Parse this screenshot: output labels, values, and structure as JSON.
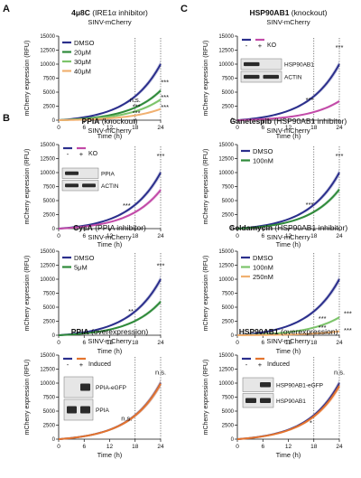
{
  "colors": {
    "blue": "#2b2f8c",
    "green": "#2f8a3a",
    "lightgreen": "#7cc46a",
    "orange": "#f0b070",
    "magenta": "#c24aa8",
    "pink": "#e68aa8",
    "darkorange": "#e4742e",
    "dotted": "#444444"
  },
  "common": {
    "xlabel": "Time (h)",
    "ylabel": "mCherry expression (RFU)",
    "xticks": [
      "0",
      "6",
      "12",
      "18",
      "24"
    ],
    "yticks": [
      "0",
      "2500",
      "5000",
      "7500",
      "10000",
      "12500",
      "15000"
    ]
  },
  "chart_data": [
    {
      "id": "a",
      "panel_letter": "A",
      "type": "line",
      "title": "4μ8C (IRE1α inhibitor)",
      "subtitle": "SINV-mCherry",
      "xlabel": "Time (h)",
      "ylabel": "mCherry expression (RFU)",
      "xlim": [
        0,
        24
      ],
      "ylim": [
        0,
        15000
      ],
      "grid": false,
      "legend": "top-left",
      "legend_entries": [
        "DMSO",
        "20μM",
        "30μM",
        "40μM"
      ],
      "series": [
        {
          "name": "DMSO",
          "color": "blue",
          "end": 10000,
          "k": 3.2
        },
        {
          "name": "20μM",
          "color": "green",
          "end": 5300,
          "k": 3.2
        },
        {
          "name": "30μM",
          "color": "lightgreen",
          "end": 3700,
          "k": 3.2
        },
        {
          "name": "40μM",
          "color": "orange",
          "end": 2000,
          "k": 3.2
        }
      ],
      "annotations": [
        {
          "text": "n.s.",
          "x": 18,
          "y": 3200
        },
        {
          "text": "***",
          "x": 18.3,
          "y": 2000
        },
        {
          "text": "***",
          "x": 18.3,
          "y": 900
        },
        {
          "text": "***",
          "x": 25,
          "y": 6400
        },
        {
          "text": "***",
          "x": 25,
          "y": 3700
        },
        {
          "text": "***",
          "x": 25,
          "y": 1900
        }
      ],
      "dotted_x": [
        18,
        24
      ]
    },
    {
      "id": "b1",
      "panel_letter": "B",
      "type": "line",
      "title": "PPIA (knockout)",
      "subtitle": "SINV-mCherry",
      "xlabel": "Time (h)",
      "ylabel": "mCherry expression (RFU)",
      "xlim": [
        0,
        24
      ],
      "ylim": [
        0,
        15000
      ],
      "grid": false,
      "legend": "top-left",
      "legend_entries": [
        "-",
        "+",
        "KO"
      ],
      "series": [
        {
          "name": "-",
          "color": "blue",
          "end": 10000,
          "k": 3.2
        },
        {
          "name": "+",
          "color": "magenta",
          "end": 6900,
          "k": 3.2
        }
      ],
      "blot_labels": [
        "PPIA",
        "ACTIN"
      ],
      "annotations": [
        {
          "text": "***",
          "x": 16,
          "y": 3700
        },
        {
          "text": "***",
          "x": 24,
          "y": 12600
        }
      ],
      "dotted_x": [
        18,
        24
      ]
    },
    {
      "id": "b2",
      "type": "line",
      "title": "CysA (PPIA inhibitor)",
      "subtitle": "SINV-mCherry",
      "xlabel": "Time (h)",
      "ylabel": "mCherry expression (RFU)",
      "xlim": [
        0,
        24
      ],
      "ylim": [
        0,
        15000
      ],
      "grid": false,
      "legend": "top-left",
      "legend_entries": [
        "DMSO",
        "5μM"
      ],
      "series": [
        {
          "name": "DMSO",
          "color": "blue",
          "end": 10000,
          "k": 3.2
        },
        {
          "name": "5μM",
          "color": "green",
          "end": 6000,
          "k": 3.2
        }
      ],
      "annotations": [
        {
          "text": "**",
          "x": 17,
          "y": 3900
        },
        {
          "text": "***",
          "x": 24,
          "y": 12000
        }
      ],
      "dotted_x": [
        18,
        24
      ]
    },
    {
      "id": "b3",
      "type": "line",
      "title": "PPIA (overexpression)",
      "subtitle": "SINV-mCherry",
      "xlabel": "Time (h)",
      "ylabel": "mCherry expression (RFU)",
      "xlim": [
        0,
        24
      ],
      "ylim": [
        0,
        15000
      ],
      "grid": false,
      "legend": "top-left",
      "legend_entries": [
        "-",
        "+",
        "Induced"
      ],
      "series": [
        {
          "name": "-",
          "color": "blue",
          "end": 10000,
          "k": 3.2
        },
        {
          "name": "+",
          "color": "darkorange",
          "end": 9900,
          "k": 3.2
        }
      ],
      "blot_labels": [
        "PPIA-eGFP",
        "PPIA"
      ],
      "annotations": [
        {
          "text": "n.s.",
          "x": 16,
          "y": 3300
        },
        {
          "text": "n.s.",
          "x": 24,
          "y": 11500
        }
      ],
      "dotted_x": [
        18,
        24
      ]
    },
    {
      "id": "c1",
      "panel_letter": "C",
      "type": "line",
      "title": "HSP90AB1 (knockout)",
      "subtitle": "SINV-mCherry",
      "xlabel": "Time (h)",
      "ylabel": "mCherry expression (RFU)",
      "xlim": [
        0,
        24
      ],
      "ylim": [
        0,
        15000
      ],
      "grid": false,
      "legend": "top-left",
      "legend_entries": [
        "-",
        "+",
        "KO"
      ],
      "series": [
        {
          "name": "-",
          "color": "blue",
          "end": 10000,
          "k": 3.2
        },
        {
          "name": "+",
          "color": "magenta",
          "end": 3400,
          "k": 3.2
        }
      ],
      "blot_labels": [
        "HSP90AB1",
        "ACTIN"
      ],
      "annotations": [
        {
          "text": "***",
          "x": 17,
          "y": 3200
        },
        {
          "text": "***",
          "x": 24,
          "y": 12600
        }
      ],
      "dotted_x": [
        18,
        24
      ]
    },
    {
      "id": "c2",
      "type": "line",
      "title": "Ganetespib (HSP90AB1 inhibitor)",
      "subtitle": "SINV-mCherry",
      "xlabel": "Time (h)",
      "ylabel": "mCherry expression (RFU)",
      "xlim": [
        0,
        24
      ],
      "ylim": [
        0,
        15000
      ],
      "grid": false,
      "legend": "top-left",
      "legend_entries": [
        "DMSO",
        "100nM"
      ],
      "series": [
        {
          "name": "DMSO",
          "color": "blue",
          "end": 10000,
          "k": 3.2
        },
        {
          "name": "100nM",
          "color": "green",
          "end": 7000,
          "k": 3.2
        }
      ],
      "annotations": [
        {
          "text": "***",
          "x": 17,
          "y": 3900
        },
        {
          "text": "***",
          "x": 24,
          "y": 12600
        }
      ],
      "dotted_x": [
        18,
        24
      ]
    },
    {
      "id": "c3",
      "type": "line",
      "title": "Geldamycin (HSP90AB1 inhibitor)",
      "subtitle": "SINV-mCherry",
      "xlabel": "Time (h)",
      "ylabel": "mCherry expression (RFU)",
      "xlim": [
        0,
        24
      ],
      "ylim": [
        0,
        15000
      ],
      "grid": false,
      "legend": "top-left",
      "legend_entries": [
        "DMSO",
        "100nM",
        "250nM"
      ],
      "series": [
        {
          "name": "DMSO",
          "color": "blue",
          "end": 10000,
          "k": 3.2
        },
        {
          "name": "100nM",
          "color": "lightgreen",
          "end": 3200,
          "k": 3.2
        },
        {
          "name": "250nM",
          "color": "orange",
          "end": 700,
          "k": 3.2
        }
      ],
      "annotations": [
        {
          "text": "***",
          "x": 20,
          "y": 2600
        },
        {
          "text": "***",
          "x": 20,
          "y": 1000
        },
        {
          "text": "***",
          "x": 26,
          "y": 3500
        },
        {
          "text": "***",
          "x": 26,
          "y": 500
        }
      ],
      "dotted_x": [
        18,
        24
      ]
    },
    {
      "id": "c4",
      "type": "line",
      "title": "HSP90AB1 (overexpression)",
      "subtitle": "SINV-mCherry",
      "xlabel": "Time (h)",
      "ylabel": "mCherry expression (RFU)",
      "xlim": [
        0,
        24
      ],
      "ylim": [
        0,
        15000
      ],
      "grid": false,
      "legend": "top-left",
      "legend_entries": [
        "-",
        "+",
        "Induced"
      ],
      "series": [
        {
          "name": "-",
          "color": "blue",
          "end": 10000,
          "k": 3.2
        },
        {
          "name": "+",
          "color": "darkorange",
          "end": 9500,
          "k": 3.2
        }
      ],
      "blot_labels": [
        "HSP90AB1-eGFP",
        "HSP90AB1"
      ],
      "annotations": [
        {
          "text": "*",
          "x": 17.3,
          "y": 2500
        },
        {
          "text": "n.s.",
          "x": 24,
          "y": 11500
        }
      ],
      "dotted_x": [
        18,
        24
      ]
    }
  ]
}
